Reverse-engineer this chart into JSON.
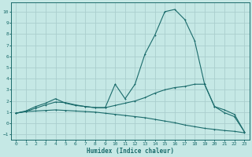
{
  "xlabel": "Humidex (Indice chaleur)",
  "background_color": "#c5e8e5",
  "grid_color": "#aacece",
  "line_color": "#1a6b6b",
  "xlim": [
    -0.5,
    23.5
  ],
  "ylim": [
    -1.5,
    10.8
  ],
  "xticks": [
    0,
    1,
    2,
    3,
    4,
    5,
    6,
    7,
    8,
    9,
    10,
    11,
    12,
    13,
    14,
    15,
    16,
    17,
    18,
    19,
    20,
    21,
    22,
    23
  ],
  "yticks": [
    -1,
    0,
    1,
    2,
    3,
    4,
    5,
    6,
    7,
    8,
    9,
    10
  ],
  "line1_x": [
    0,
    1,
    2,
    3,
    4,
    5,
    6,
    7,
    8,
    9,
    10,
    11,
    12,
    13,
    14,
    15,
    16,
    17,
    18,
    19,
    20,
    21,
    22,
    23
  ],
  "line1_y": [
    0.9,
    1.1,
    1.5,
    1.8,
    2.2,
    1.8,
    1.6,
    1.5,
    1.4,
    1.4,
    3.5,
    2.2,
    3.5,
    6.2,
    7.9,
    10.0,
    10.2,
    9.3,
    7.4,
    3.5,
    1.5,
    0.95,
    0.6,
    -0.75
  ],
  "line2_x": [
    0,
    1,
    2,
    3,
    4,
    5,
    6,
    7,
    8,
    9,
    10,
    11,
    12,
    13,
    14,
    15,
    16,
    17,
    18,
    19,
    20,
    21,
    22,
    23
  ],
  "line2_y": [
    0.9,
    1.05,
    1.35,
    1.65,
    1.9,
    1.85,
    1.65,
    1.5,
    1.4,
    1.4,
    1.6,
    1.8,
    2.0,
    2.3,
    2.7,
    3.0,
    3.2,
    3.3,
    3.5,
    3.5,
    1.5,
    1.2,
    0.8,
    -0.75
  ],
  "line3_x": [
    0,
    1,
    2,
    3,
    4,
    5,
    6,
    7,
    8,
    9,
    10,
    11,
    12,
    13,
    14,
    15,
    16,
    17,
    18,
    19,
    20,
    21,
    22,
    23
  ],
  "line3_y": [
    0.9,
    1.05,
    1.1,
    1.15,
    1.2,
    1.15,
    1.1,
    1.05,
    1.0,
    0.9,
    0.8,
    0.7,
    0.6,
    0.5,
    0.35,
    0.2,
    0.05,
    -0.15,
    -0.3,
    -0.45,
    -0.55,
    -0.65,
    -0.72,
    -0.85
  ]
}
